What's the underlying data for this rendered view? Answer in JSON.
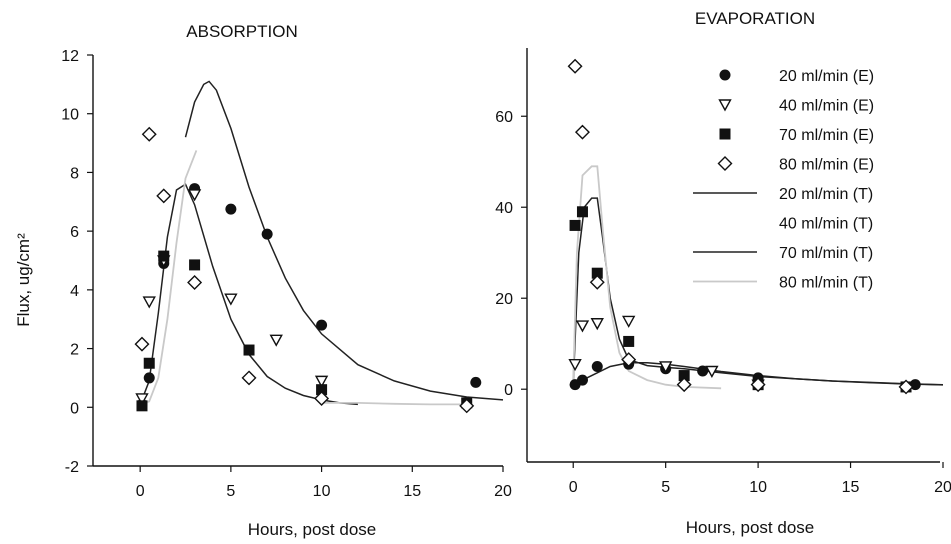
{
  "chart_data": [
    {
      "type": "scatter",
      "title": "ABSORPTION",
      "xlabel": "Hours, post dose",
      "ylabel": "Flux, ug/cm²",
      "xlim": [
        -2.6,
        20
      ],
      "ylim": [
        -2,
        12
      ],
      "xticks": [
        0,
        5,
        10,
        15,
        20
      ],
      "yticks": [
        -2,
        0,
        2,
        4,
        6,
        8,
        10,
        12
      ],
      "grid": false,
      "series": [
        {
          "name": "20 ml/min (E)",
          "marker": "circle",
          "x": [
            0.1,
            0.5,
            1.3,
            3,
            5,
            7,
            10,
            18.5
          ],
          "y": [
            0.1,
            1.0,
            4.9,
            7.45,
            6.75,
            5.9,
            2.8,
            0.85
          ]
        },
        {
          "name": "40 ml/min (E)",
          "marker": "triangle-down",
          "x": [
            0.1,
            0.5,
            1.3,
            3,
            5,
            7.5,
            10
          ],
          "y": [
            0.3,
            3.6,
            5.0,
            7.25,
            3.7,
            2.3,
            0.9
          ]
        },
        {
          "name": "70 ml/min (E)",
          "marker": "square",
          "x": [
            0.1,
            0.5,
            1.3,
            3,
            6,
            10,
            18
          ],
          "y": [
            0.05,
            1.5,
            5.15,
            4.85,
            1.95,
            0.6,
            0.15
          ]
        },
        {
          "name": "80 ml/min (E)",
          "marker": "diamond",
          "x": [
            0.1,
            0.5,
            1.3,
            3,
            6,
            10,
            18
          ],
          "y": [
            2.15,
            9.3,
            7.2,
            4.25,
            1.0,
            0.3,
            0.05
          ]
        },
        {
          "name": "20 ml/min (T)",
          "style": "solid",
          "x": [
            2.5,
            3,
            3.5,
            3.8,
            4.2,
            5,
            6,
            7,
            8,
            9,
            10,
            12,
            14,
            16,
            18,
            20
          ],
          "y": [
            9.2,
            10.4,
            11.0,
            11.1,
            10.8,
            9.5,
            7.5,
            5.8,
            4.4,
            3.3,
            2.5,
            1.45,
            0.9,
            0.55,
            0.35,
            0.25
          ]
        },
        {
          "name": "70 ml/min (T)",
          "style": "solid",
          "x": [
            0,
            0.5,
            1,
            1.5,
            2,
            2.5,
            3,
            4,
            5,
            6,
            7,
            8,
            9,
            10,
            11,
            12
          ],
          "y": [
            0.1,
            0.9,
            3.2,
            5.8,
            7.4,
            7.6,
            6.9,
            4.8,
            3.0,
            1.8,
            1.05,
            0.65,
            0.4,
            0.25,
            0.15,
            0.1
          ]
        },
        {
          "name": "80 ml/min (T)",
          "style": "faint",
          "x": [
            0,
            0.5,
            1,
            1.5,
            2,
            2.5,
            3.1
          ],
          "y": [
            0.1,
            0.2,
            1.0,
            3.0,
            5.6,
            7.8,
            8.75
          ]
        },
        {
          "name": "40 ml/min (T)",
          "style": "faint",
          "x": [
            10,
            12,
            14,
            16,
            18
          ],
          "y": [
            0.15,
            0.15,
            0.12,
            0.1,
            0.1
          ]
        }
      ]
    },
    {
      "type": "scatter",
      "title": "EVAPORATION",
      "xlabel": "Hours, post dose",
      "ylabel": "",
      "xlim": [
        -2.5,
        20
      ],
      "ylim": [
        -16,
        75
      ],
      "xticks": [
        0,
        5,
        10,
        15,
        20
      ],
      "yticks": [
        0,
        20,
        40,
        60
      ],
      "grid": false,
      "legend": "top-right",
      "legend_entries": [
        {
          "label": "20 ml/min (E)",
          "symbol": "circle"
        },
        {
          "label": "40 ml/min (E)",
          "symbol": "triangle-down"
        },
        {
          "label": "70 ml/min (E)",
          "symbol": "square"
        },
        {
          "label": "80 ml/min (E)",
          "symbol": "diamond"
        },
        {
          "label": "20 ml/min (T)",
          "symbol": "line-solid"
        },
        {
          "label": "40 ml/min (T)",
          "symbol": "line-none"
        },
        {
          "label": "70 ml/min (T)",
          "symbol": "line-solid"
        },
        {
          "label": "80 ml/min (T)",
          "symbol": "line-faint"
        }
      ],
      "series": [
        {
          "name": "20 ml/min (E)",
          "marker": "circle",
          "x": [
            0.1,
            0.5,
            1.3,
            3,
            5,
            7,
            10,
            18.5
          ],
          "y": [
            1.0,
            2.0,
            5.0,
            5.5,
            4.5,
            4.0,
            2.5,
            1.0
          ]
        },
        {
          "name": "40 ml/min (E)",
          "marker": "triangle-down",
          "x": [
            0.1,
            0.5,
            1.3,
            3,
            5,
            7.5,
            10
          ],
          "y": [
            5.5,
            14.0,
            14.5,
            15.0,
            5.0,
            4.0,
            1.0
          ]
        },
        {
          "name": "70 ml/min (E)",
          "marker": "square",
          "x": [
            0.1,
            0.5,
            1.3,
            3,
            6,
            10,
            18
          ],
          "y": [
            36.0,
            39.0,
            25.5,
            10.5,
            3.0,
            1.0,
            0.5
          ]
        },
        {
          "name": "80 ml/min (E)",
          "marker": "diamond",
          "x": [
            0.1,
            0.5,
            1.3,
            3,
            6,
            10,
            18
          ],
          "y": [
            71.0,
            56.5,
            23.5,
            6.5,
            1.0,
            1.0,
            0.5
          ]
        },
        {
          "name": "20 ml/min (T)",
          "style": "solid",
          "x": [
            0,
            0.5,
            1,
            2,
            3,
            4,
            5,
            6,
            8,
            10,
            12,
            14,
            16,
            18,
            20
          ],
          "y": [
            1.0,
            2.0,
            3.0,
            5.0,
            5.8,
            5.8,
            5.5,
            5.0,
            3.9,
            3.0,
            2.3,
            1.8,
            1.45,
            1.15,
            0.95
          ]
        },
        {
          "name": "70 ml/min (T)",
          "style": "solid",
          "x": [
            0,
            0.3,
            0.6,
            1,
            1.3,
            1.6,
            2,
            2.5,
            3,
            4,
            5,
            6,
            8,
            10,
            14,
            18,
            20
          ],
          "y": [
            1.0,
            30.0,
            40.0,
            42.0,
            42.0,
            33.0,
            20.0,
            11.0,
            6.5,
            5.2,
            4.8,
            4.5,
            3.6,
            2.8,
            1.8,
            1.2,
            1.0
          ]
        },
        {
          "name": "80 ml/min (T)",
          "style": "faint",
          "x": [
            0,
            0.2,
            0.5,
            1,
            1.3,
            1.6,
            2,
            2.5,
            3,
            4,
            5,
            6,
            8
          ],
          "y": [
            2.0,
            30.0,
            47.0,
            49.0,
            49.0,
            35.0,
            18.0,
            8.0,
            4.0,
            2.0,
            1.0,
            0.5,
            0.2
          ]
        }
      ]
    }
  ]
}
